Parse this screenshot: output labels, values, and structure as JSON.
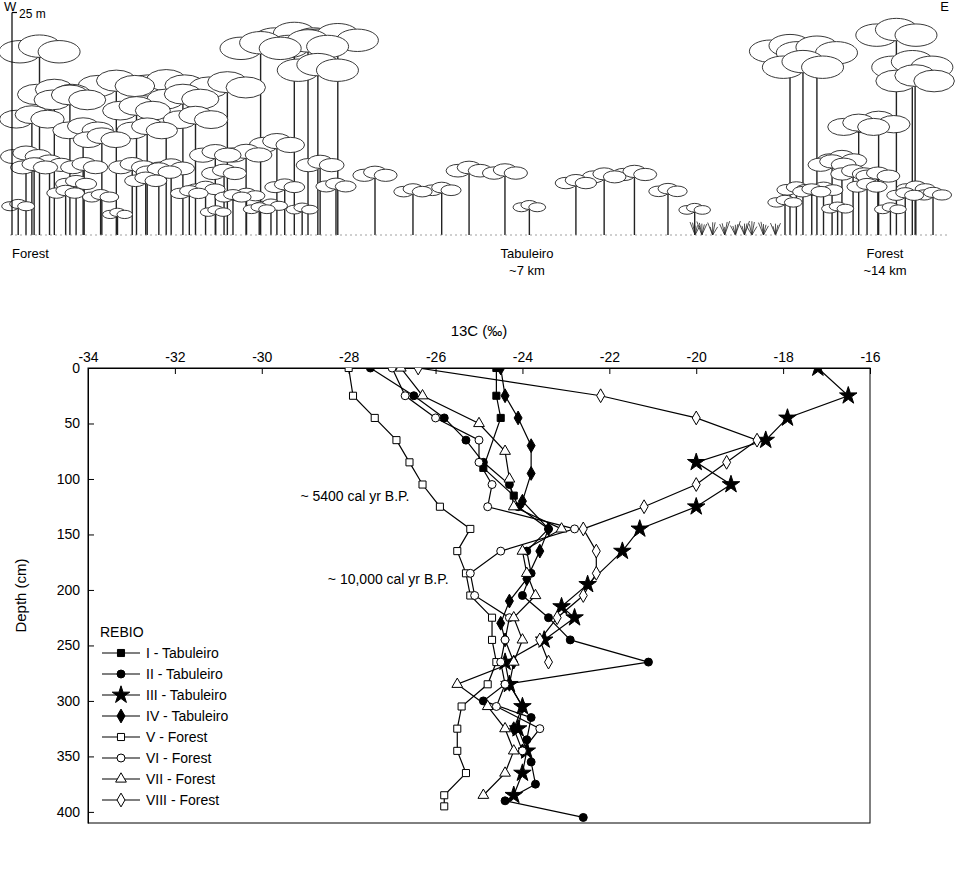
{
  "profile": {
    "west": "W",
    "east": "E",
    "scale_label": "25 m",
    "labels": [
      {
        "texts": [
          "Forest"
        ]
      },
      {
        "texts": [
          "Tabuleiro",
          "~7 km"
        ]
      },
      {
        "texts": [
          "Forest",
          "~14 km"
        ]
      }
    ]
  },
  "chart_data": {
    "type": "line",
    "x_label": "13C (‰)",
    "y_label": "Depth (cm)",
    "xlim": [
      -34,
      -16
    ],
    "xticks": [
      -34,
      -32,
      -30,
      -28,
      -26,
      -24,
      -22,
      -20,
      -18,
      -16
    ],
    "ylim": [
      0,
      410
    ],
    "yticks": [
      0,
      50,
      100,
      150,
      200,
      250,
      300,
      350,
      400
    ],
    "legend": "lower left",
    "legend_title": "REBIO",
    "annotations": [
      {
        "text": "~ 5400 cal yr B.P.",
        "x": -26.6,
        "y": 120
      },
      {
        "text": "~ 10,000 cal yr B.P.",
        "x": -25.7,
        "y": 195
      }
    ],
    "series": [
      {
        "name": "I - Tabuleiro",
        "color": "#000000",
        "marker": "square",
        "y": [
          0,
          25,
          45,
          90,
          115
        ],
        "x": [
          -24.6,
          -24.6,
          -24.5,
          -24.9,
          -24.2
        ]
      },
      {
        "name": "II - Tabuleiro",
        "color": "#000000",
        "marker": "circle",
        "y": [
          0,
          25,
          45,
          65,
          85,
          105,
          125,
          145,
          165,
          185,
          205,
          225,
          245,
          265,
          285,
          300,
          315,
          335,
          355,
          375,
          390,
          405
        ],
        "x": [
          -27.5,
          -26.5,
          -25.8,
          -25.3,
          -24.9,
          -24.3,
          -24.1,
          -23.4,
          -23.9,
          -23.8,
          -24.0,
          -23.4,
          -22.9,
          -21.1,
          -24.4,
          -24.9,
          -23.8,
          -23.9,
          -23.8,
          -23.7,
          -24.4,
          -22.6
        ]
      },
      {
        "name": "III - Tabuleiro",
        "color": "#000000",
        "marker": "star",
        "y": [
          0,
          25,
          45,
          65,
          85,
          105,
          125,
          145,
          165,
          195,
          215,
          225,
          245,
          265,
          285,
          305,
          325,
          345,
          365,
          385
        ],
        "x": [
          -17.2,
          -16.5,
          -17.9,
          -18.4,
          -20.0,
          -19.2,
          -20.0,
          -21.3,
          -21.7,
          -22.5,
          -23.1,
          -22.8,
          -23.5,
          -24.4,
          -24.3,
          -24.0,
          -24.1,
          -23.9,
          -24.0,
          -24.2
        ]
      },
      {
        "name": "IV - Tabuleiro",
        "color": "#000000",
        "marker": "diamond",
        "y": [
          0,
          25,
          45,
          70,
          95,
          120,
          145,
          165,
          190,
          210,
          230,
          245,
          265,
          285,
          305,
          325,
          345
        ],
        "x": [
          -24.5,
          -24.4,
          -24.1,
          -23.8,
          -23.8,
          -24.0,
          -23.4,
          -23.6,
          -23.9,
          -24.3,
          -24.5,
          -24.4,
          -24.2,
          -24.3,
          -24.0,
          -24.2,
          -24.0
        ]
      },
      {
        "name": "V - Forest",
        "color": "#000000",
        "marker": "open-square",
        "y": [
          0,
          25,
          45,
          65,
          85,
          105,
          125,
          145,
          165,
          185,
          205,
          225,
          245,
          265,
          285,
          305,
          325,
          345,
          365,
          385,
          395
        ],
        "x": [
          -28.0,
          -27.9,
          -27.4,
          -26.9,
          -26.6,
          -26.3,
          -25.9,
          -25.2,
          -25.5,
          -25.3,
          -25.2,
          -24.7,
          -24.7,
          -24.6,
          -24.8,
          -25.4,
          -25.5,
          -25.5,
          -25.3,
          -25.8,
          -25.8
        ]
      },
      {
        "name": "VI - Forest",
        "color": "#000000",
        "marker": "open-circle",
        "y": [
          0,
          25,
          45,
          65,
          85,
          105,
          125,
          145,
          165,
          185,
          205,
          225,
          245,
          265,
          285,
          305,
          325,
          345
        ],
        "x": [
          -27.0,
          -26.7,
          -26.0,
          -25.0,
          -25.0,
          -24.7,
          -24.8,
          -22.8,
          -24.5,
          -25.2,
          -25.1,
          -24.3,
          -24.4,
          -24.5,
          -24.4,
          -24.6,
          -23.6,
          -24.0
        ]
      },
      {
        "name": "VII - Forest",
        "color": "#000000",
        "marker": "open-triangle",
        "y": [
          0,
          25,
          50,
          75,
          100,
          125,
          145,
          165,
          185,
          205,
          225,
          245,
          265,
          285,
          305,
          325,
          345,
          365,
          385
        ],
        "x": [
          -26.8,
          -26.3,
          -25.0,
          -24.4,
          -24.3,
          -24.2,
          -23.1,
          -24.0,
          -23.9,
          -23.7,
          -24.2,
          -24.0,
          -24.2,
          -25.5,
          -24.8,
          -24.4,
          -24.2,
          -24.4,
          -24.9
        ]
      },
      {
        "name": "VIII - Forest",
        "color": "#000000",
        "marker": "open-diamond",
        "y": [
          0,
          25,
          45,
          65,
          85,
          105,
          125,
          145,
          165,
          185,
          205,
          225,
          245,
          265
        ],
        "x": [
          -26.4,
          -22.2,
          -20.0,
          -18.6,
          -19.3,
          -20.0,
          -21.2,
          -22.6,
          -22.3,
          -22.3,
          -22.6,
          -23.2,
          -23.6,
          -23.4
        ]
      }
    ]
  }
}
